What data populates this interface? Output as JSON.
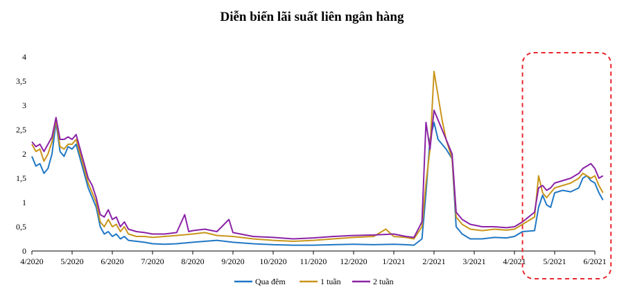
{
  "chart_data": {
    "type": "line",
    "title": "Diễn biến lãi suất liên ngân hàng",
    "xlabel": "",
    "ylabel": "",
    "ylim": [
      0,
      4
    ],
    "y_ticks": [
      "0",
      "0,5",
      "1",
      "1,5",
      "2",
      "2,5",
      "3",
      "3,5",
      "4"
    ],
    "x_ticks": [
      "4/2020",
      "5/2020",
      "6/2020",
      "7/2020",
      "8/2020",
      "9/2020",
      "10/2020",
      "11/2020",
      "12/2020",
      "1/2021",
      "2/2021",
      "3/2021",
      "4/2021",
      "5/2021",
      "6/2021"
    ],
    "x_unit": "month index (0 = 4/2020, 14 = 6/2021)",
    "legend_position": "bottom",
    "highlight": {
      "x_range": [
        12.2,
        14.4
      ],
      "style": "dashed",
      "color": "#e8262b"
    },
    "series": [
      {
        "name": "Qua đêm",
        "color": "#1f77c4",
        "points": [
          [
            0,
            1.95
          ],
          [
            0.1,
            1.75
          ],
          [
            0.2,
            1.8
          ],
          [
            0.3,
            1.6
          ],
          [
            0.4,
            1.7
          ],
          [
            0.5,
            2.0
          ],
          [
            0.6,
            2.65
          ],
          [
            0.7,
            2.05
          ],
          [
            0.8,
            1.95
          ],
          [
            0.9,
            2.15
          ],
          [
            1.0,
            2.1
          ],
          [
            1.1,
            2.2
          ],
          [
            1.2,
            1.9
          ],
          [
            1.3,
            1.6
          ],
          [
            1.4,
            1.3
          ],
          [
            1.5,
            1.1
          ],
          [
            1.6,
            0.9
          ],
          [
            1.7,
            0.5
          ],
          [
            1.8,
            0.35
          ],
          [
            1.9,
            0.4
          ],
          [
            2.0,
            0.3
          ],
          [
            2.1,
            0.35
          ],
          [
            2.2,
            0.25
          ],
          [
            2.3,
            0.3
          ],
          [
            2.4,
            0.22
          ],
          [
            2.6,
            0.2
          ],
          [
            2.8,
            0.18
          ],
          [
            3.0,
            0.15
          ],
          [
            3.3,
            0.14
          ],
          [
            3.6,
            0.15
          ],
          [
            4.0,
            0.18
          ],
          [
            4.3,
            0.2
          ],
          [
            4.6,
            0.22
          ],
          [
            5.0,
            0.18
          ],
          [
            5.5,
            0.15
          ],
          [
            6.0,
            0.13
          ],
          [
            6.5,
            0.12
          ],
          [
            7.0,
            0.12
          ],
          [
            7.5,
            0.13
          ],
          [
            8.0,
            0.14
          ],
          [
            8.5,
            0.13
          ],
          [
            9.0,
            0.14
          ],
          [
            9.3,
            0.13
          ],
          [
            9.5,
            0.12
          ],
          [
            9.7,
            0.25
          ],
          [
            9.8,
            1.2
          ],
          [
            9.9,
            2.3
          ],
          [
            10.0,
            2.65
          ],
          [
            10.1,
            2.3
          ],
          [
            10.2,
            2.2
          ],
          [
            10.3,
            2.1
          ],
          [
            10.45,
            1.9
          ],
          [
            10.55,
            0.5
          ],
          [
            10.7,
            0.35
          ],
          [
            10.9,
            0.25
          ],
          [
            11.2,
            0.25
          ],
          [
            11.5,
            0.28
          ],
          [
            11.8,
            0.27
          ],
          [
            12.0,
            0.3
          ],
          [
            12.2,
            0.4
          ],
          [
            12.5,
            0.42
          ],
          [
            12.6,
            0.9
          ],
          [
            12.7,
            1.15
          ],
          [
            12.8,
            0.95
          ],
          [
            12.9,
            0.9
          ],
          [
            13.0,
            1.2
          ],
          [
            13.2,
            1.25
          ],
          [
            13.4,
            1.22
          ],
          [
            13.6,
            1.3
          ],
          [
            13.7,
            1.5
          ],
          [
            13.8,
            1.55
          ],
          [
            13.9,
            1.45
          ],
          [
            14.0,
            1.4
          ],
          [
            14.1,
            1.2
          ],
          [
            14.2,
            1.05
          ]
        ]
      },
      {
        "name": "1 tuần",
        "color": "#c9951a",
        "points": [
          [
            0,
            2.2
          ],
          [
            0.1,
            2.05
          ],
          [
            0.2,
            2.1
          ],
          [
            0.3,
            1.85
          ],
          [
            0.4,
            2.0
          ],
          [
            0.5,
            2.25
          ],
          [
            0.6,
            2.7
          ],
          [
            0.7,
            2.15
          ],
          [
            0.8,
            2.1
          ],
          [
            0.9,
            2.2
          ],
          [
            1.0,
            2.2
          ],
          [
            1.1,
            2.3
          ],
          [
            1.2,
            2.0
          ],
          [
            1.3,
            1.7
          ],
          [
            1.4,
            1.4
          ],
          [
            1.5,
            1.2
          ],
          [
            1.6,
            1.0
          ],
          [
            1.7,
            0.6
          ],
          [
            1.8,
            0.5
          ],
          [
            1.9,
            0.65
          ],
          [
            2.0,
            0.5
          ],
          [
            2.1,
            0.55
          ],
          [
            2.2,
            0.4
          ],
          [
            2.3,
            0.5
          ],
          [
            2.4,
            0.35
          ],
          [
            2.6,
            0.3
          ],
          [
            2.8,
            0.3
          ],
          [
            3.0,
            0.28
          ],
          [
            3.3,
            0.3
          ],
          [
            3.6,
            0.32
          ],
          [
            4.0,
            0.35
          ],
          [
            4.3,
            0.38
          ],
          [
            4.6,
            0.32
          ],
          [
            5.0,
            0.3
          ],
          [
            5.5,
            0.25
          ],
          [
            6.0,
            0.22
          ],
          [
            6.5,
            0.2
          ],
          [
            7.0,
            0.22
          ],
          [
            7.5,
            0.25
          ],
          [
            8.0,
            0.28
          ],
          [
            8.5,
            0.3
          ],
          [
            8.8,
            0.45
          ],
          [
            9.0,
            0.3
          ],
          [
            9.3,
            0.28
          ],
          [
            9.5,
            0.25
          ],
          [
            9.7,
            0.5
          ],
          [
            9.8,
            1.4
          ],
          [
            9.9,
            2.1
          ],
          [
            10.0,
            3.7
          ],
          [
            10.1,
            3.2
          ],
          [
            10.2,
            2.7
          ],
          [
            10.3,
            2.3
          ],
          [
            10.45,
            1.9
          ],
          [
            10.55,
            0.7
          ],
          [
            10.7,
            0.55
          ],
          [
            10.9,
            0.45
          ],
          [
            11.2,
            0.42
          ],
          [
            11.5,
            0.45
          ],
          [
            11.8,
            0.43
          ],
          [
            12.0,
            0.45
          ],
          [
            12.2,
            0.55
          ],
          [
            12.5,
            0.7
          ],
          [
            12.6,
            1.55
          ],
          [
            12.7,
            1.2
          ],
          [
            12.8,
            1.1
          ],
          [
            12.9,
            1.2
          ],
          [
            13.0,
            1.3
          ],
          [
            13.2,
            1.35
          ],
          [
            13.4,
            1.4
          ],
          [
            13.6,
            1.5
          ],
          [
            13.7,
            1.6
          ],
          [
            13.8,
            1.55
          ],
          [
            13.9,
            1.5
          ],
          [
            14.0,
            1.55
          ],
          [
            14.1,
            1.35
          ],
          [
            14.2,
            1.2
          ]
        ]
      },
      {
        "name": "2 tuần",
        "color": "#8a22a6",
        "points": [
          [
            0,
            2.25
          ],
          [
            0.1,
            2.15
          ],
          [
            0.2,
            2.2
          ],
          [
            0.3,
            2.05
          ],
          [
            0.4,
            2.2
          ],
          [
            0.5,
            2.35
          ],
          [
            0.6,
            2.75
          ],
          [
            0.7,
            2.3
          ],
          [
            0.8,
            2.3
          ],
          [
            0.9,
            2.35
          ],
          [
            1.0,
            2.3
          ],
          [
            1.1,
            2.4
          ],
          [
            1.2,
            2.1
          ],
          [
            1.3,
            1.8
          ],
          [
            1.4,
            1.5
          ],
          [
            1.5,
            1.35
          ],
          [
            1.6,
            1.1
          ],
          [
            1.7,
            0.75
          ],
          [
            1.8,
            0.7
          ],
          [
            1.9,
            0.85
          ],
          [
            2.0,
            0.65
          ],
          [
            2.1,
            0.7
          ],
          [
            2.2,
            0.5
          ],
          [
            2.3,
            0.6
          ],
          [
            2.4,
            0.45
          ],
          [
            2.6,
            0.4
          ],
          [
            2.8,
            0.38
          ],
          [
            3.0,
            0.35
          ],
          [
            3.3,
            0.35
          ],
          [
            3.6,
            0.38
          ],
          [
            3.8,
            0.75
          ],
          [
            3.9,
            0.4
          ],
          [
            4.0,
            0.42
          ],
          [
            4.3,
            0.45
          ],
          [
            4.6,
            0.4
          ],
          [
            4.9,
            0.65
          ],
          [
            5.0,
            0.38
          ],
          [
            5.5,
            0.3
          ],
          [
            6.0,
            0.28
          ],
          [
            6.5,
            0.25
          ],
          [
            7.0,
            0.27
          ],
          [
            7.5,
            0.3
          ],
          [
            8.0,
            0.32
          ],
          [
            8.5,
            0.33
          ],
          [
            9.0,
            0.35
          ],
          [
            9.3,
            0.3
          ],
          [
            9.5,
            0.28
          ],
          [
            9.7,
            0.6
          ],
          [
            9.8,
            2.65
          ],
          [
            9.9,
            2.1
          ],
          [
            10.0,
            2.9
          ],
          [
            10.1,
            2.7
          ],
          [
            10.2,
            2.5
          ],
          [
            10.3,
            2.3
          ],
          [
            10.45,
            2.0
          ],
          [
            10.55,
            0.8
          ],
          [
            10.7,
            0.65
          ],
          [
            10.9,
            0.55
          ],
          [
            11.2,
            0.5
          ],
          [
            11.5,
            0.5
          ],
          [
            11.8,
            0.48
          ],
          [
            12.0,
            0.5
          ],
          [
            12.2,
            0.6
          ],
          [
            12.5,
            0.8
          ],
          [
            12.6,
            1.3
          ],
          [
            12.7,
            1.35
          ],
          [
            12.8,
            1.25
          ],
          [
            12.9,
            1.3
          ],
          [
            13.0,
            1.4
          ],
          [
            13.2,
            1.45
          ],
          [
            13.4,
            1.5
          ],
          [
            13.6,
            1.6
          ],
          [
            13.7,
            1.7
          ],
          [
            13.8,
            1.75
          ],
          [
            13.9,
            1.8
          ],
          [
            14.0,
            1.7
          ],
          [
            14.1,
            1.5
          ],
          [
            14.2,
            1.55
          ]
        ]
      }
    ]
  }
}
